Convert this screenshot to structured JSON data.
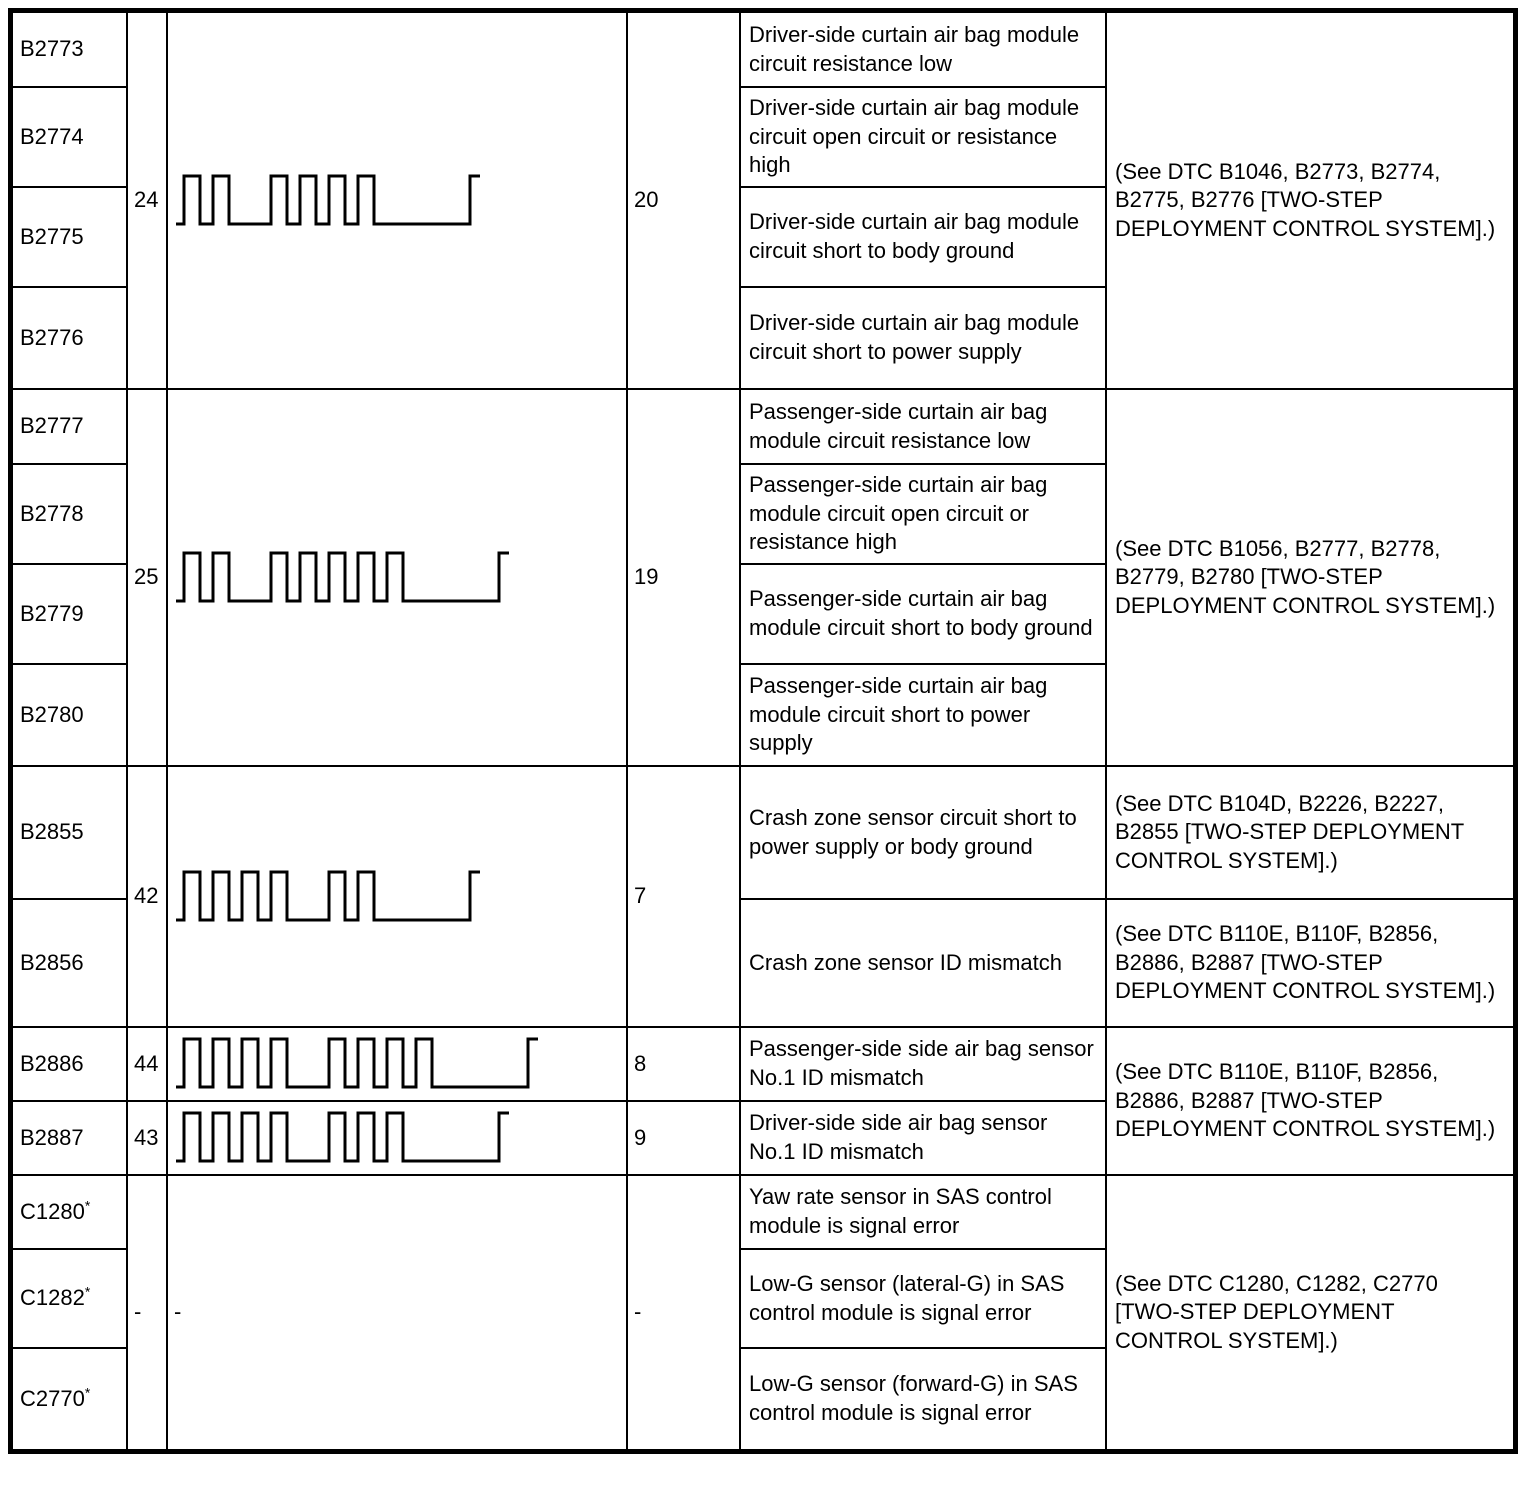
{
  "page": {
    "background": "#ffffff",
    "border_color": "#000000",
    "text_color": "#000000"
  },
  "table": {
    "semantic": "dtc-flash-pattern-table",
    "columns": [
      "dtc_code",
      "flash_code",
      "flash_pattern",
      "output_code",
      "description",
      "reference"
    ],
    "g1": {
      "flash": "24",
      "out": "20",
      "pattern": {
        "type": "square-wave",
        "groups": [
          2,
          4
        ]
      },
      "ref": "(See DTC B1046, B2773, B2774, B2775, B2776 [TWO-STEP DEPLOYMENT CONTROL SYSTEM].)",
      "rows": [
        {
          "code": "B2773",
          "desc": "Driver-side curtain air bag module circuit resistance low"
        },
        {
          "code": "B2774",
          "desc": "Driver-side curtain air bag module circuit open circuit or resistance high"
        },
        {
          "code": "B2775",
          "desc": "Driver-side curtain air bag module circuit short to body ground"
        },
        {
          "code": "B2776",
          "desc": "Driver-side curtain air bag module circuit short to power supply"
        }
      ]
    },
    "g2": {
      "flash": "25",
      "out": "19",
      "pattern": {
        "type": "square-wave",
        "groups": [
          2,
          5
        ]
      },
      "ref": "(See DTC B1056, B2777, B2778, B2779, B2780 [TWO-STEP DEPLOYMENT CONTROL SYSTEM].)",
      "rows": [
        {
          "code": "B2777",
          "desc": "Passenger-side curtain air bag module circuit resistance low"
        },
        {
          "code": "B2778",
          "desc": "Passenger-side curtain air bag module circuit open circuit or resistance high"
        },
        {
          "code": "B2779",
          "desc": "Passenger-side curtain air bag module circuit short to body ground"
        },
        {
          "code": "B2780",
          "desc": "Passenger-side curtain air bag module circuit short to power supply"
        }
      ]
    },
    "g3": {
      "flash": "42",
      "out": "7",
      "pattern": {
        "type": "square-wave",
        "groups": [
          4,
          2
        ]
      },
      "rows": [
        {
          "code": "B2855",
          "desc": "Crash zone sensor circuit short to power supply or body ground",
          "ref": "(See DTC B104D, B2226, B2227, B2855 [TWO-STEP DEPLOYMENT CONTROL SYSTEM].)"
        },
        {
          "code": "B2856",
          "desc": "Crash zone sensor ID mismatch",
          "ref": "(See DTC B110E, B110F, B2856, B2886, B2887 [TWO-STEP DEPLOYMENT CONTROL SYSTEM].)"
        }
      ]
    },
    "g4": {
      "ref": "(See DTC B110E, B110F, B2856, B2886, B2887 [TWO-STEP DEPLOYMENT CONTROL SYSTEM].)",
      "rows": [
        {
          "code": "B2886",
          "flash": "44",
          "out": "8",
          "pattern": {
            "type": "square-wave",
            "groups": [
              4,
              4
            ]
          },
          "desc": "Passenger-side side air bag sensor No.1 ID mismatch"
        },
        {
          "code": "B2887",
          "flash": "43",
          "out": "9",
          "pattern": {
            "type": "square-wave",
            "groups": [
              4,
              3
            ]
          },
          "desc": "Driver-side side air bag sensor No.1 ID mismatch"
        }
      ]
    },
    "g5": {
      "flash": "-",
      "pattern_text": "-",
      "out": "-",
      "ref": "(See DTC C1280, C1282, C2770 [TWO-STEP DEPLOYMENT CONTROL SYSTEM].)",
      "rows": [
        {
          "code": "C1280",
          "sup": "*",
          "desc": "Yaw rate sensor in SAS control module is signal error"
        },
        {
          "code": "C1282",
          "sup": "*",
          "desc": "Low-G sensor (lateral-G) in SAS control module is signal error"
        },
        {
          "code": "C2770",
          "sup": "*",
          "desc": "Low-G sensor (forward-G) in SAS control module is signal error"
        }
      ]
    }
  }
}
